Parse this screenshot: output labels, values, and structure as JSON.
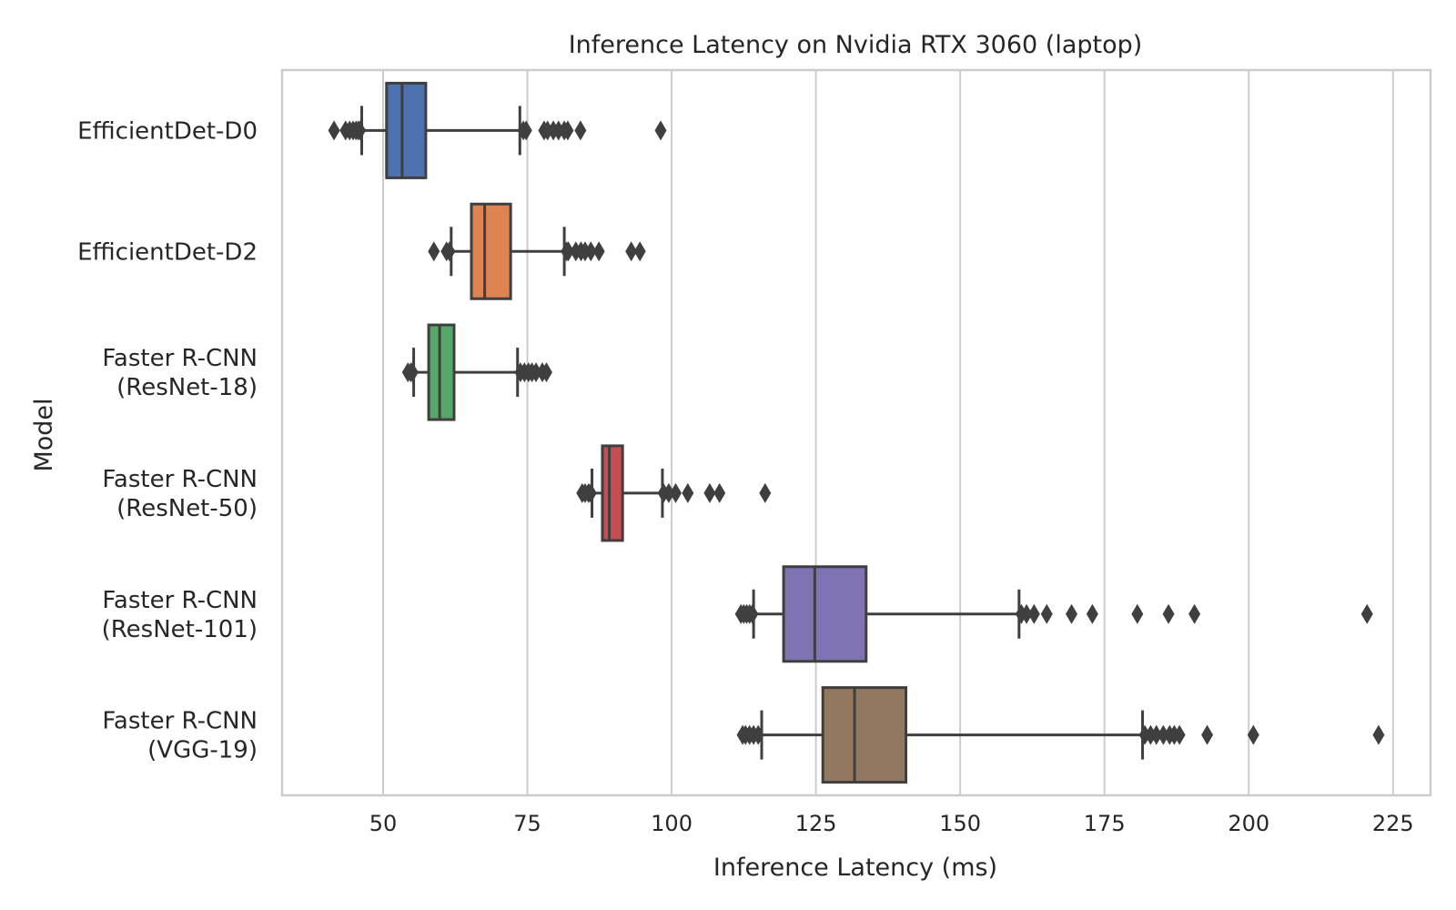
{
  "chart_data": {
    "type": "boxplot",
    "orientation": "horizontal",
    "title": "Inference Latency on Nvidia RTX 3060 (laptop)",
    "xlabel": "Inference Latency (ms)",
    "ylabel": "Model",
    "xlim": [
      32.5,
      231.5
    ],
    "xticks": [
      50,
      75,
      100,
      125,
      150,
      175,
      200,
      225
    ],
    "grid": "vertical",
    "legend": "none",
    "series": [
      {
        "label_lines": [
          "EfficientDet-D0"
        ],
        "color": "#4c72b0",
        "whisker_low": 46.3,
        "q1": 50.6,
        "median": 53.3,
        "q3": 57.4,
        "whisker_high": 73.7,
        "outliers": [
          41.5,
          43.5,
          44.2,
          44.8,
          45.3,
          45.7,
          46.0,
          74.3,
          74.8,
          77.9,
          78.5,
          79.5,
          80.4,
          81.4,
          82.0,
          84.2,
          98.1
        ]
      },
      {
        "label_lines": [
          "EfficientDet-D2"
        ],
        "color": "#dd8452",
        "whisker_low": 61.8,
        "q1": 65.3,
        "median": 67.6,
        "q3": 72.1,
        "whisker_high": 81.4,
        "outliers": [
          58.8,
          61.0,
          61.5,
          81.8,
          82.1,
          83.4,
          84.3,
          85.0,
          86.0,
          87.4,
          93.0,
          94.5
        ]
      },
      {
        "label_lines": [
          "Faster R-CNN",
          "(ResNet-18)"
        ],
        "color": "#55a868",
        "whisker_low": 55.3,
        "q1": 57.9,
        "median": 59.8,
        "q3": 62.3,
        "whisker_high": 73.3,
        "outliers": [
          54.3,
          54.8,
          55.1,
          73.8,
          74.5,
          75.2,
          75.8,
          76.5,
          77.6,
          78.3
        ]
      },
      {
        "label_lines": [
          "Faster R-CNN",
          "(ResNet-50)"
        ],
        "color": "#c44e52",
        "whisker_low": 86.2,
        "q1": 88.0,
        "median": 89.2,
        "q3": 91.5,
        "whisker_high": 98.4,
        "outliers": [
          84.5,
          85.0,
          85.6,
          86.0,
          98.6,
          99.5,
          100.7,
          102.8,
          106.6,
          108.3,
          116.2
        ]
      },
      {
        "label_lines": [
          "Faster R-CNN",
          "(ResNet-101)"
        ],
        "color": "#8172b3",
        "whisker_low": 114.2,
        "q1": 119.4,
        "median": 124.8,
        "q3": 133.7,
        "whisker_high": 160.2,
        "outliers": [
          112.0,
          112.5,
          113.0,
          113.5,
          114.0,
          160.6,
          161.5,
          162.8,
          165.0,
          169.3,
          172.9,
          180.7,
          186.1,
          190.6,
          220.5
        ]
      },
      {
        "label_lines": [
          "Faster R-CNN",
          "(VGG-19)"
        ],
        "color": "#937860",
        "whisker_low": 115.6,
        "q1": 126.2,
        "median": 131.7,
        "q3": 140.6,
        "whisker_high": 181.6,
        "outliers": [
          112.3,
          112.8,
          113.5,
          114.2,
          115.0,
          182.0,
          183.0,
          184.0,
          185.2,
          186.3,
          187.1,
          188.0,
          192.8,
          200.8,
          222.5
        ]
      }
    ]
  }
}
